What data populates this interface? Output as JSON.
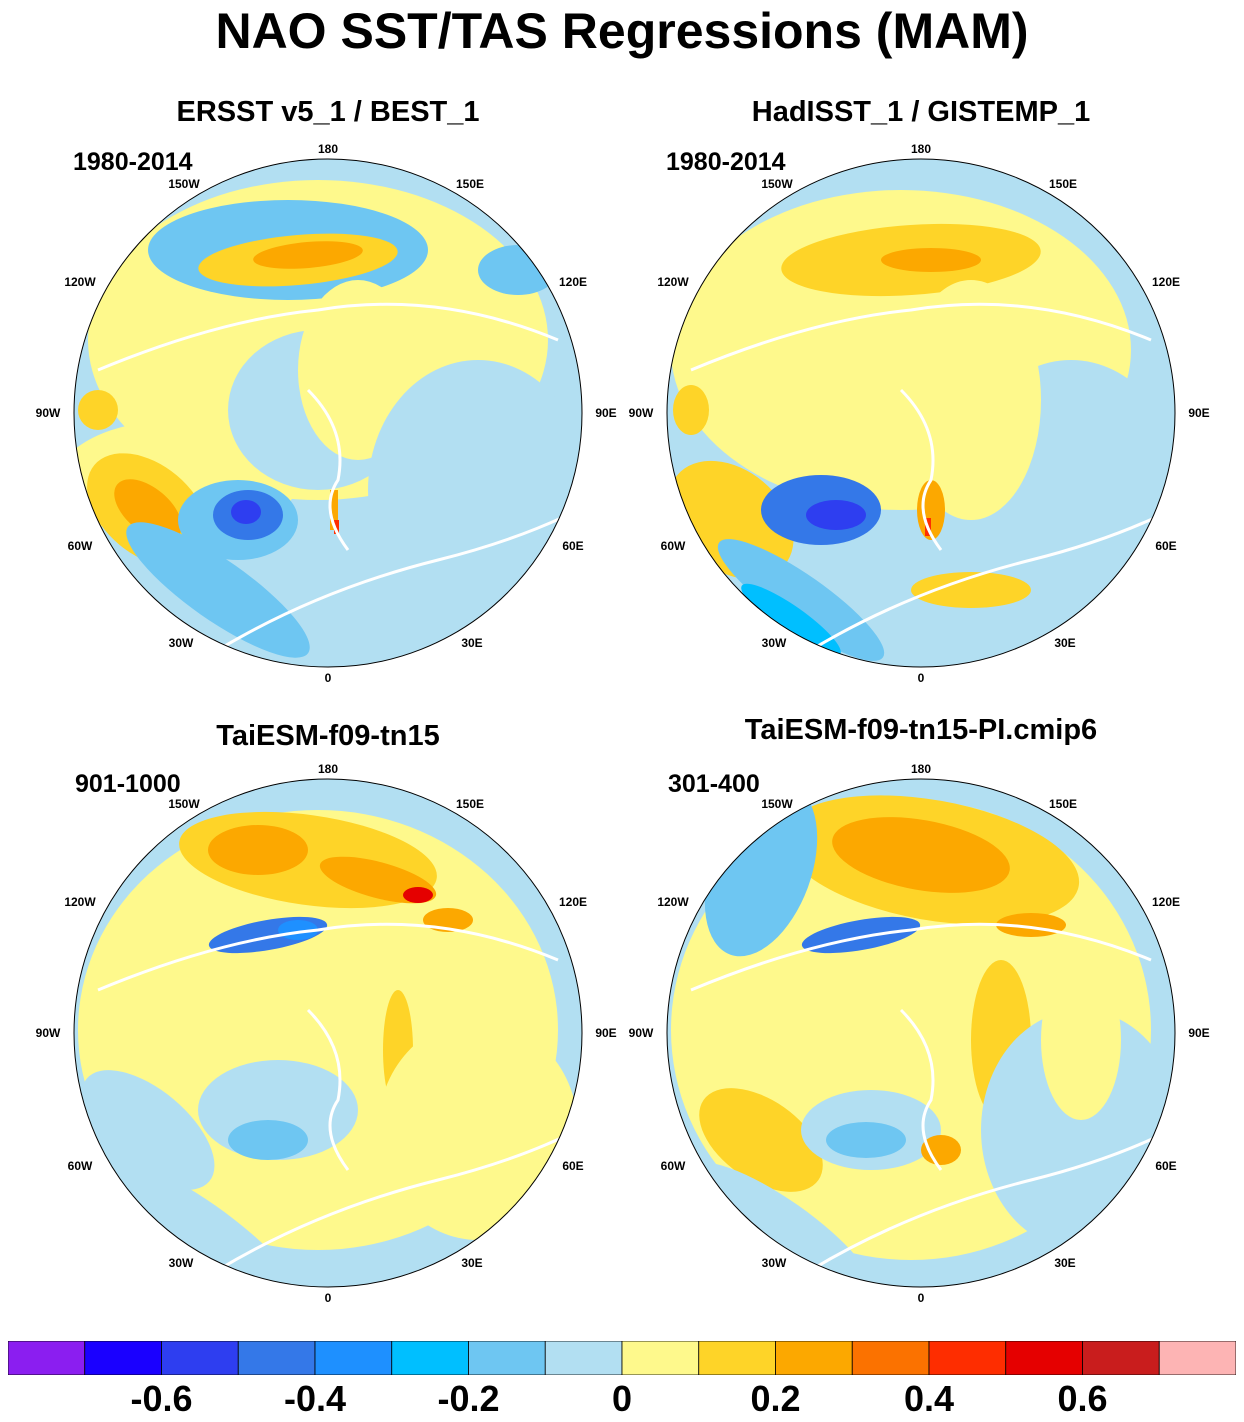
{
  "title": "NAO SST/TAS Regressions (MAM)",
  "panels": [
    {
      "title": "ERSST v5_1 / BEST_1",
      "period": "1980-2014"
    },
    {
      "title": "HadISST_1 / GISTEMP_1",
      "period": "1980-2014"
    },
    {
      "title": "TaiESM-f09-tn15",
      "period": "901-1000"
    },
    {
      "title": "TaiESM-f09-tn15-PI.cmip6",
      "period": "301-400"
    }
  ],
  "longitude_labels": {
    "lon_180": "180",
    "lon_150e": "150E",
    "lon_120e": "120E",
    "lon_90e": "90E",
    "lon_60e": "60E",
    "lon_30e": "30E",
    "lon_0": "0",
    "lon_30w": "30W",
    "lon_60w": "60W",
    "lon_90w": "90W",
    "lon_120w": "120W",
    "lon_150w": "150W"
  },
  "colorbar": {
    "colors": [
      "#8b1ef0",
      "#1a00ff",
      "#2e3ef0",
      "#3478e8",
      "#1e90ff",
      "#00bfff",
      "#6ec6f2",
      "#b2dff2",
      "#fef98c",
      "#fed428",
      "#fca800",
      "#fb7200",
      "#fe2d00",
      "#e50000",
      "#c91d1d",
      "#fdb4b4"
    ],
    "tick_labels": [
      "-0.6",
      "-0.4",
      "-0.2",
      "0",
      "0.2",
      "0.4",
      "0.6"
    ],
    "tick_values": [
      -0.6,
      -0.4,
      -0.2,
      0,
      0.2,
      0.4,
      0.6
    ],
    "min": -0.8,
    "max": 0.8
  }
}
